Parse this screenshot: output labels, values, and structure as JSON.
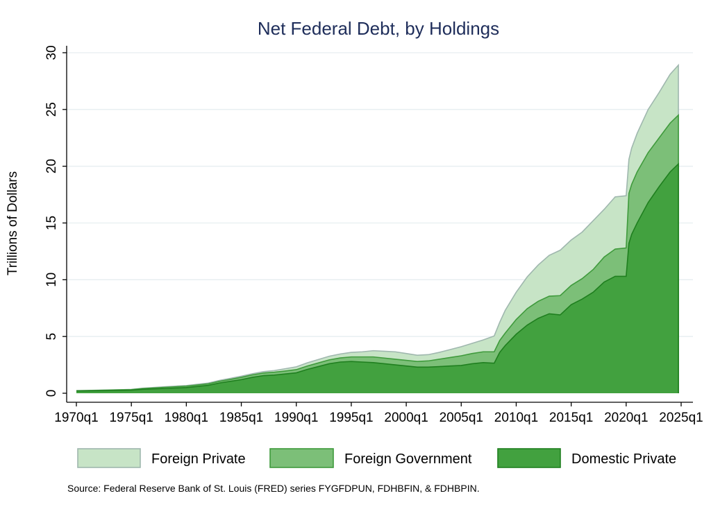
{
  "chart_data": {
    "type": "area",
    "stacked": true,
    "title": "Net Federal Debt, by Holdings",
    "ylabel": "Trillions of Dollars",
    "xlabel": "",
    "ylim": [
      0,
      30
    ],
    "yticks": [
      0,
      5,
      10,
      15,
      20,
      25,
      30
    ],
    "xlim": [
      1970.0,
      2025.25
    ],
    "xticks": [
      {
        "value": 1970,
        "label": "1970q1"
      },
      {
        "value": 1975,
        "label": "1975q1"
      },
      {
        "value": 1980,
        "label": "1980q1"
      },
      {
        "value": 1985,
        "label": "1985q1"
      },
      {
        "value": 1990,
        "label": "1990q1"
      },
      {
        "value": 1995,
        "label": "1995q1"
      },
      {
        "value": 2000,
        "label": "2000q1"
      },
      {
        "value": 2005,
        "label": "2005q1"
      },
      {
        "value": 2010,
        "label": "2010q1"
      },
      {
        "value": 2015,
        "label": "2015q1"
      },
      {
        "value": 2020,
        "label": "2020q1"
      },
      {
        "value": 2025,
        "label": "2025q1"
      }
    ],
    "grid": true,
    "legend_position": "bottom",
    "x": [
      1970,
      1972,
      1974,
      1975,
      1976,
      1978,
      1980,
      1982,
      1983,
      1984,
      1985,
      1986,
      1987,
      1988,
      1989,
      1990,
      1991,
      1992,
      1993,
      1994,
      1995,
      1996,
      1997,
      1998,
      1999,
      2000,
      2001,
      2002,
      2003,
      2004,
      2005,
      2006,
      2007,
      2008,
      2008.5,
      2009,
      2010,
      2011,
      2012,
      2013,
      2014,
      2015,
      2016,
      2017,
      2018,
      2019,
      2020,
      2020.25,
      2020.5,
      2021,
      2022,
      2023,
      2024,
      2024.75
    ],
    "series": [
      {
        "name": "Domestic Private",
        "values": [
          0.2,
          0.22,
          0.25,
          0.27,
          0.35,
          0.42,
          0.5,
          0.7,
          0.9,
          1.05,
          1.2,
          1.4,
          1.55,
          1.6,
          1.7,
          1.8,
          2.1,
          2.35,
          2.6,
          2.75,
          2.8,
          2.75,
          2.7,
          2.6,
          2.5,
          2.4,
          2.3,
          2.3,
          2.35,
          2.4,
          2.45,
          2.6,
          2.7,
          2.65,
          3.6,
          4.2,
          5.2,
          6.0,
          6.6,
          7.0,
          6.9,
          7.8,
          8.3,
          8.9,
          9.8,
          10.3,
          10.3,
          13.2,
          14.0,
          15.0,
          16.8,
          18.2,
          19.5,
          20.2
        ]
      },
      {
        "name": "Foreign Government",
        "values": [
          0.02,
          0.04,
          0.05,
          0.05,
          0.06,
          0.1,
          0.12,
          0.13,
          0.15,
          0.17,
          0.2,
          0.22,
          0.23,
          0.25,
          0.26,
          0.28,
          0.3,
          0.32,
          0.34,
          0.36,
          0.4,
          0.45,
          0.5,
          0.5,
          0.5,
          0.5,
          0.5,
          0.55,
          0.65,
          0.75,
          0.85,
          0.9,
          0.95,
          1.0,
          1.05,
          1.1,
          1.3,
          1.45,
          1.5,
          1.55,
          1.7,
          1.7,
          1.8,
          2.0,
          2.2,
          2.4,
          2.5,
          4.4,
          4.4,
          4.5,
          4.4,
          4.3,
          4.3,
          4.3
        ]
      },
      {
        "name": "Foreign Private",
        "values": [
          0.01,
          0.01,
          0.01,
          0.02,
          0.03,
          0.05,
          0.06,
          0.07,
          0.08,
          0.09,
          0.1,
          0.1,
          0.12,
          0.15,
          0.2,
          0.25,
          0.28,
          0.3,
          0.32,
          0.35,
          0.4,
          0.45,
          0.55,
          0.6,
          0.65,
          0.6,
          0.55,
          0.55,
          0.6,
          0.7,
          0.8,
          0.9,
          1.05,
          1.4,
          1.6,
          2.0,
          2.4,
          2.8,
          3.2,
          3.6,
          4.0,
          4.0,
          4.1,
          4.3,
          4.2,
          4.6,
          4.6,
          3.0,
          3.2,
          3.4,
          3.8,
          4.0,
          4.3,
          4.4
        ]
      }
    ],
    "colors": {
      "Foreign Private": {
        "fill": "#c7e4c6",
        "stroke": "#9fb7ae"
      },
      "Foreign Government": {
        "fill": "#7cbf78",
        "stroke": "#3f9a3c"
      },
      "Domestic Private": {
        "fill": "#42a13f",
        "stroke": "#1f7f1f"
      }
    },
    "legend_order": [
      "Foreign Private",
      "Foreign Government",
      "Domestic Private"
    ],
    "source_note": "Source: Federal Reserve Bank of St. Louis (FRED) series FYGFDPUN, FDHBFIN, & FDHBPIN."
  }
}
